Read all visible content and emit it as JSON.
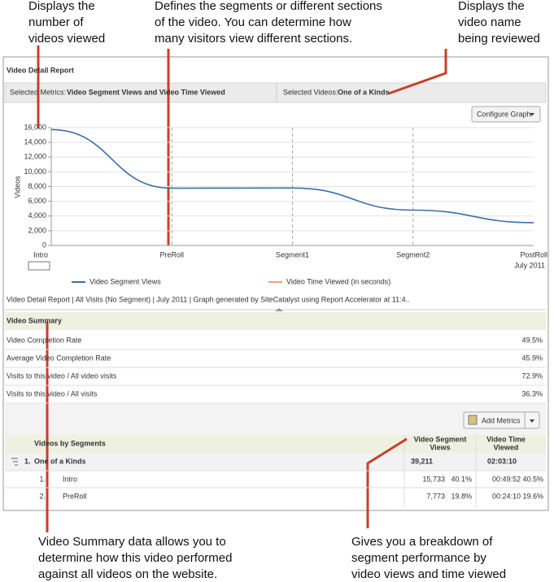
{
  "annotations": {
    "top_left": [
      "Displays the",
      "number of",
      "videos viewed"
    ],
    "top_middle": [
      "Defines the segments or different sections",
      "of the video. You can determine how",
      "many visitors view different sections."
    ],
    "top_right": [
      "Displays the",
      "video name",
      "being reviewed"
    ],
    "bottom_left": [
      "Video Summary data allows you to",
      "determine how this video performed",
      "against all videos on the website."
    ],
    "bottom_right": [
      "Gives you a breakdown of",
      "segment performance by",
      "video views and time viewed"
    ]
  },
  "report": {
    "title": "Video Detail Report",
    "selected_metrics_label": "Selected Metrics:",
    "selected_metrics": "Video Segment Views and Video Time Viewed",
    "selected_videos_label": "Selected Videos:",
    "selected_videos": "One of a Kinds",
    "configure_button": "Configure Graph",
    "footer": "Video Detail Report | All Visits (No Segment) | July 2011 | Graph generated by SiteCatalyst using Report Accelerator at 11:4..",
    "summary_title": "Video Summary",
    "summary": [
      {
        "label": "Video Completion Rate",
        "value": "49.5%"
      },
      {
        "label": "Average Video Completion Rate",
        "value": "45.9%"
      },
      {
        "label": "Visits to this video / All video visits",
        "value": "72.9%"
      },
      {
        "label": "Visits to this video / All visits",
        "value": "36.3%"
      }
    ],
    "add_metrics": "Add Metrics",
    "table": {
      "header": [
        "Videos by Segments",
        [
          "Video Segment",
          "Views"
        ],
        [
          "Video Time",
          "Viewed"
        ]
      ],
      "total": {
        "index": "1.",
        "name": "One of a Kinds",
        "views": "39,211",
        "time": "02:03:10"
      },
      "rows": [
        {
          "index": "1.",
          "name": "Intro",
          "views": "15,733",
          "views_pct": "40.1%",
          "time": "00:49:52",
          "time_pct": "40.5%"
        },
        {
          "index": "2.",
          "name": "PreRoll",
          "views": "7,773",
          "views_pct": "19.8%",
          "time": "00:24:10",
          "time_pct": "19.6%"
        }
      ]
    }
  },
  "chart_data": {
    "type": "line",
    "categories": [
      "Intro",
      "PreRoll",
      "Segment1",
      "Segment2",
      "PostRoll"
    ],
    "x_note": "July 2011",
    "ylabel": "Videos",
    "series": [
      {
        "name": "Video Segment Views",
        "color": "#3d6fa6",
        "values": [
          15733,
          7773,
          7800,
          4800,
          3100
        ]
      },
      {
        "name": "Video Time Viewed (in seconds)",
        "color": "#f0a070",
        "values": [
          null,
          null,
          null,
          null,
          null
        ]
      }
    ],
    "ylim": [
      0,
      16000
    ],
    "yticks": [
      0,
      {
        "value": 2000,
        "label": "2,000"
      },
      {
        "value": 4000,
        "label": "4,000"
      },
      {
        "value": 6000,
        "label": "6,000"
      },
      {
        "value": 8000,
        "label": "8,000"
      },
      {
        "value": 10000,
        "label": "10,000"
      },
      {
        "value": 12000,
        "label": "12,000"
      },
      {
        "value": 14000,
        "label": "14,000"
      },
      {
        "value": 16000,
        "label": "16,000"
      }
    ],
    "grid": true
  }
}
